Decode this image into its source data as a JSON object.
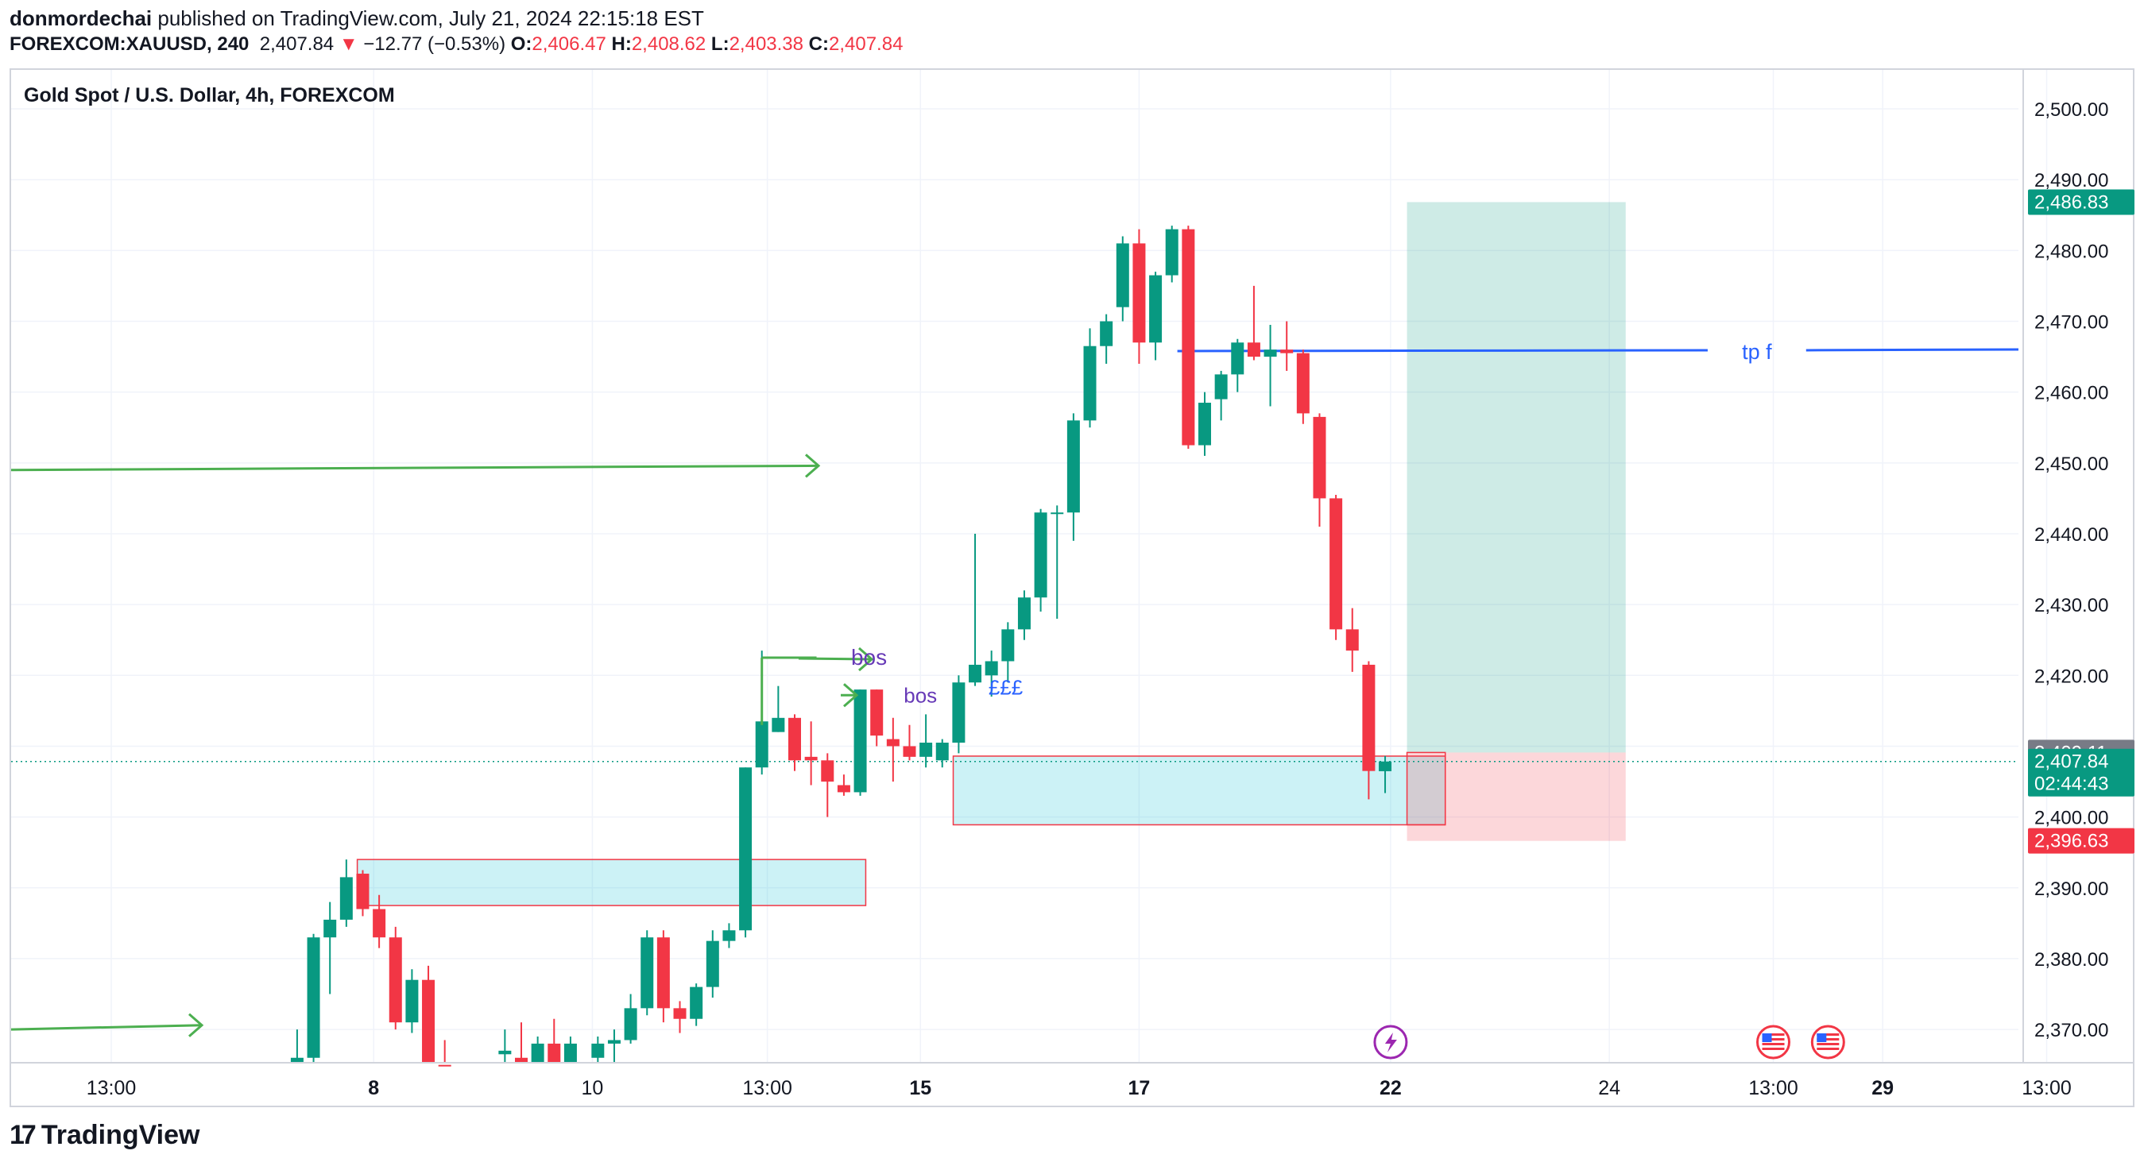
{
  "header": {
    "user": "donmordechai",
    "published_text": "published on TradingView.com, July 21, 2024 22:15:18 EST",
    "symbol": "FOREXCOM:XAUUSD, 240",
    "last": "2,407.84",
    "change": "−12.77 (−0.53%)",
    "o_label": "O:",
    "o_value": "2,406.47",
    "h_label": "H:",
    "h_value": "2,408.62",
    "l_label": "L:",
    "l_value": "2,403.38",
    "c_label": "C:",
    "c_value": "2,407.84"
  },
  "footer": {
    "brand": "TradingView",
    "logo_text": "17"
  },
  "colors": {
    "up": "#089981",
    "down": "#f23645",
    "grid": "#f0f3fa",
    "tp_line": "#2962ff",
    "arrow": "#4caf50"
  },
  "chart_data": {
    "type": "candlestick",
    "title": "Gold Spot / U.S. Dollar, 4h, FOREXCOM",
    "price_axis": {
      "ticks": [
        "2,500.00",
        "2,490.00",
        "2,480.00",
        "2,470.00",
        "2,460.00",
        "2,450.00",
        "2,440.00",
        "2,430.00",
        "2,420.00",
        "2,410.00",
        "2,400.00",
        "2,390.00",
        "2,380.00",
        "2,370.00"
      ],
      "tick_values": [
        2500,
        2490,
        2480,
        2470,
        2460,
        2450,
        2440,
        2430,
        2420,
        2410,
        2400,
        2390,
        2380,
        2370
      ],
      "ylim": [
        2365.3,
        2505.5
      ]
    },
    "time_axis": {
      "labels": [
        "13:00",
        "8",
        "10",
        "13:00",
        "15",
        "17",
        "22",
        "24",
        "13:00",
        "29",
        "13:00"
      ],
      "bold": [
        false,
        true,
        false,
        false,
        true,
        true,
        true,
        false,
        false,
        true,
        false
      ],
      "positions": [
        5.6,
        8,
        10,
        11.6,
        13,
        15,
        17.3,
        19.3,
        20.8,
        21.8,
        23.3
      ]
    },
    "price_labels": [
      {
        "text": "2,486.83",
        "value": 2486.83,
        "color": "#089981"
      },
      {
        "text": "2,409.11",
        "value": 2409.11,
        "color": "#787b86"
      },
      {
        "text": "2,407.84",
        "value": 2407.84,
        "color": "#089981",
        "sub": "02:44:43"
      },
      {
        "text": "2,396.63",
        "value": 2396.63,
        "color": "#f23645"
      }
    ],
    "annotations": {
      "tp_label": "tp f",
      "tp_value": 2465.8,
      "bos_1": "bos",
      "bos_2": "bos",
      "pound_text": "£££",
      "current_price": 2407.84
    },
    "zones": [
      {
        "kind": "demand",
        "x_from": 7.85,
        "x_to": 12.5,
        "top": 2394.0,
        "bottom": 2387.5
      },
      {
        "kind": "demand",
        "x_from": 13.3,
        "x_to": 17.8,
        "top": 2408.6,
        "bottom": 2398.9
      },
      {
        "kind": "target",
        "x_from": 17.45,
        "x_to": 19.45,
        "top": 2486.83,
        "bottom": 2409.11
      },
      {
        "kind": "stop",
        "x_from": 17.45,
        "x_to": 19.45,
        "top": 2409.11,
        "bottom": 2396.63
      }
    ],
    "candles": [
      {
        "x": 7.3,
        "o": 2359.0,
        "h": 2370.0,
        "l": 2356.0,
        "c": 2366.0
      },
      {
        "x": 7.45,
        "o": 2366.0,
        "h": 2383.5,
        "l": 2364.0,
        "c": 2383.0
      },
      {
        "x": 7.6,
        "o": 2383.0,
        "h": 2388.0,
        "l": 2375.0,
        "c": 2385.5
      },
      {
        "x": 7.75,
        "o": 2385.5,
        "h": 2394.0,
        "l": 2384.5,
        "c": 2391.5
      },
      {
        "x": 7.9,
        "o": 2392.0,
        "h": 2392.5,
        "l": 2386.0,
        "c": 2387.0
      },
      {
        "x": 8.05,
        "o": 2387.0,
        "h": 2389.0,
        "l": 2381.5,
        "c": 2383.0
      },
      {
        "x": 8.2,
        "o": 2383.0,
        "h": 2384.5,
        "l": 2370.0,
        "c": 2371.0
      },
      {
        "x": 8.35,
        "o": 2371.0,
        "h": 2378.5,
        "l": 2369.5,
        "c": 2377.0
      },
      {
        "x": 8.5,
        "o": 2377.0,
        "h": 2379.0,
        "l": 2363.0,
        "c": 2365.0
      },
      {
        "x": 8.65,
        "o": 2365.0,
        "h": 2368.5,
        "l": 2361.0,
        "c": 2363.0
      },
      {
        "x": 9.2,
        "o": 2366.5,
        "h": 2370.0,
        "l": 2364.0,
        "c": 2367.0
      },
      {
        "x": 9.35,
        "o": 2366.0,
        "h": 2371.0,
        "l": 2361.0,
        "c": 2363.0
      },
      {
        "x": 9.5,
        "o": 2363.0,
        "h": 2369.0,
        "l": 2362.0,
        "c": 2368.0
      },
      {
        "x": 9.65,
        "o": 2368.0,
        "h": 2371.5,
        "l": 2364.0,
        "c": 2365.0
      },
      {
        "x": 9.8,
        "o": 2365.0,
        "h": 2369.0,
        "l": 2363.0,
        "c": 2368.0
      },
      {
        "x": 10.05,
        "o": 2366.0,
        "h": 2369.0,
        "l": 2363.0,
        "c": 2368.0
      },
      {
        "x": 10.2,
        "o": 2368.0,
        "h": 2370.0,
        "l": 2365.0,
        "c": 2368.5
      },
      {
        "x": 10.35,
        "o": 2368.5,
        "h": 2375.0,
        "l": 2368.0,
        "c": 2373.0
      },
      {
        "x": 10.5,
        "o": 2373.0,
        "h": 2384.0,
        "l": 2372.0,
        "c": 2383.0
      },
      {
        "x": 10.65,
        "o": 2383.0,
        "h": 2384.0,
        "l": 2371.0,
        "c": 2373.0
      },
      {
        "x": 10.8,
        "o": 2373.0,
        "h": 2374.0,
        "l": 2369.5,
        "c": 2371.5
      },
      {
        "x": 10.95,
        "o": 2371.5,
        "h": 2376.5,
        "l": 2370.5,
        "c": 2376.0
      },
      {
        "x": 11.1,
        "o": 2376.0,
        "h": 2384.0,
        "l": 2374.5,
        "c": 2382.5
      },
      {
        "x": 11.25,
        "o": 2382.5,
        "h": 2385.0,
        "l": 2381.5,
        "c": 2384.0
      },
      {
        "x": 11.4,
        "o": 2384.0,
        "h": 2407.0,
        "l": 2383.0,
        "c": 2407.0
      },
      {
        "x": 11.55,
        "o": 2407.0,
        "h": 2423.5,
        "l": 2406.0,
        "c": 2413.5
      },
      {
        "x": 11.7,
        "o": 2412.0,
        "h": 2418.5,
        "l": 2412.0,
        "c": 2414.0
      },
      {
        "x": 11.85,
        "o": 2414.0,
        "h": 2414.5,
        "l": 2406.5,
        "c": 2408.0
      },
      {
        "x": 12.0,
        "o": 2408.5,
        "h": 2413.5,
        "l": 2404.5,
        "c": 2408.0
      },
      {
        "x": 12.15,
        "o": 2408.0,
        "h": 2409.0,
        "l": 2400.0,
        "c": 2405.0
      },
      {
        "x": 12.3,
        "o": 2404.5,
        "h": 2406.0,
        "l": 2403.0,
        "c": 2403.5
      },
      {
        "x": 12.45,
        "o": 2403.5,
        "h": 2418.0,
        "l": 2403.0,
        "c": 2418.0
      },
      {
        "x": 12.6,
        "o": 2418.0,
        "h": 2418.0,
        "l": 2410.0,
        "c": 2411.5
      },
      {
        "x": 12.75,
        "o": 2411.0,
        "h": 2414.0,
        "l": 2405.0,
        "c": 2410.0
      },
      {
        "x": 12.9,
        "o": 2410.0,
        "h": 2413.0,
        "l": 2408.0,
        "c": 2408.5
      },
      {
        "x": 13.05,
        "o": 2408.5,
        "h": 2414.5,
        "l": 2407.0,
        "c": 2410.5
      },
      {
        "x": 13.2,
        "o": 2408.0,
        "h": 2411.0,
        "l": 2407.0,
        "c": 2410.5
      },
      {
        "x": 13.35,
        "o": 2410.5,
        "h": 2420.0,
        "l": 2409.0,
        "c": 2419.0
      },
      {
        "x": 13.5,
        "o": 2419.0,
        "h": 2440.0,
        "l": 2418.5,
        "c": 2421.5
      },
      {
        "x": 13.65,
        "o": 2420.0,
        "h": 2423.5,
        "l": 2417.0,
        "c": 2422.0
      },
      {
        "x": 13.8,
        "o": 2422.0,
        "h": 2427.5,
        "l": 2419.0,
        "c": 2426.5
      },
      {
        "x": 13.95,
        "o": 2426.5,
        "h": 2432.0,
        "l": 2425.0,
        "c": 2431.0
      },
      {
        "x": 14.1,
        "o": 2431.0,
        "h": 2443.5,
        "l": 2429.0,
        "c": 2443.0
      },
      {
        "x": 14.25,
        "o": 2443.0,
        "h": 2444.0,
        "l": 2428.0,
        "c": 2443.0
      },
      {
        "x": 14.4,
        "o": 2443.0,
        "h": 2457.0,
        "l": 2439.0,
        "c": 2456.0
      },
      {
        "x": 14.55,
        "o": 2456.0,
        "h": 2469.0,
        "l": 2455.0,
        "c": 2466.5
      },
      {
        "x": 14.7,
        "o": 2466.5,
        "h": 2471.0,
        "l": 2464.0,
        "c": 2470.0
      },
      {
        "x": 14.85,
        "o": 2472.0,
        "h": 2482.0,
        "l": 2470.0,
        "c": 2481.0
      },
      {
        "x": 15.0,
        "o": 2481.0,
        "h": 2483.0,
        "l": 2464.0,
        "c": 2467.0
      },
      {
        "x": 15.15,
        "o": 2467.0,
        "h": 2477.0,
        "l": 2464.5,
        "c": 2476.5
      },
      {
        "x": 15.3,
        "o": 2476.5,
        "h": 2483.5,
        "l": 2475.5,
        "c": 2483.0
      },
      {
        "x": 15.45,
        "o": 2483.0,
        "h": 2483.5,
        "l": 2452.0,
        "c": 2452.5
      },
      {
        "x": 15.6,
        "o": 2452.5,
        "h": 2460.0,
        "l": 2451.0,
        "c": 2458.5
      },
      {
        "x": 15.75,
        "o": 2459.0,
        "h": 2463.0,
        "l": 2456.0,
        "c": 2462.5
      },
      {
        "x": 15.9,
        "o": 2462.5,
        "h": 2467.5,
        "l": 2460.0,
        "c": 2467.0
      },
      {
        "x": 16.05,
        "o": 2467.0,
        "h": 2475.0,
        "l": 2464.5,
        "c": 2465.0
      },
      {
        "x": 16.2,
        "o": 2465.0,
        "h": 2469.5,
        "l": 2458.0,
        "c": 2466.0
      },
      {
        "x": 16.35,
        "o": 2466.0,
        "h": 2470.0,
        "l": 2463.0,
        "c": 2465.5
      },
      {
        "x": 16.5,
        "o": 2465.5,
        "h": 2466.0,
        "l": 2455.5,
        "c": 2457.0
      },
      {
        "x": 16.65,
        "o": 2456.5,
        "h": 2457.0,
        "l": 2441.0,
        "c": 2445.0
      },
      {
        "x": 16.8,
        "o": 2445.0,
        "h": 2445.5,
        "l": 2425.0,
        "c": 2426.5
      },
      {
        "x": 16.95,
        "o": 2426.5,
        "h": 2429.5,
        "l": 2420.5,
        "c": 2423.5
      },
      {
        "x": 17.1,
        "o": 2421.5,
        "h": 2422.0,
        "l": 2402.5,
        "c": 2406.5
      },
      {
        "x": 17.25,
        "o": 2406.47,
        "h": 2408.62,
        "l": 2403.38,
        "c": 2407.84
      }
    ]
  }
}
